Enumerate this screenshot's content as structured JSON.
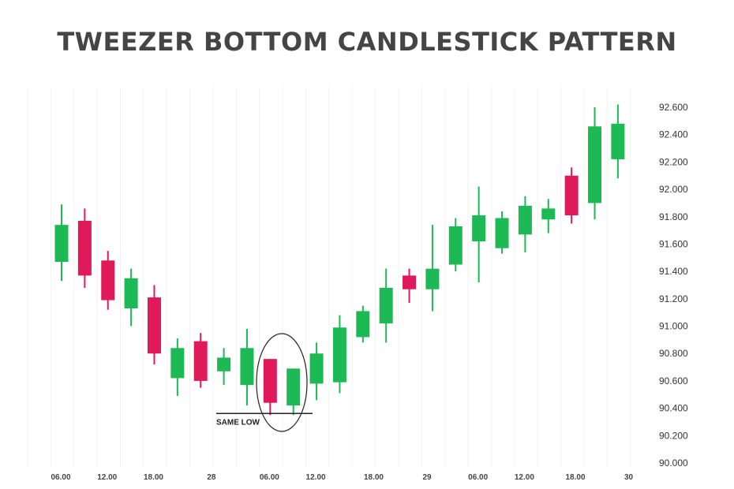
{
  "chart_data": {
    "type": "candlestick",
    "title": "TWEEZER BOTTOM CANDLESTICK PATTERN",
    "y_axis_position": "right",
    "ylim": [
      90.0,
      92.6
    ],
    "y_ticks": [
      "92.600",
      "92.400",
      "92.200",
      "92.000",
      "91.800",
      "91.600",
      "91.400",
      "91.200",
      "91.000",
      "90.800",
      "90.600",
      "90.400",
      "90.200",
      "90.000"
    ],
    "x_ticks": [
      {
        "label": "06.00",
        "at": 0
      },
      {
        "label": "12.00",
        "at": 2
      },
      {
        "label": "18.00",
        "at": 4
      },
      {
        "label": "28",
        "at": 6.5
      },
      {
        "label": "06.00",
        "at": 9
      },
      {
        "label": "12.00",
        "at": 11
      },
      {
        "label": "18.00",
        "at": 13.5
      },
      {
        "label": "29",
        "at": 15.8
      },
      {
        "label": "06.00",
        "at": 18
      },
      {
        "label": "12.00",
        "at": 20
      },
      {
        "label": "18.00",
        "at": 22.2
      },
      {
        "label": "30",
        "at": 24.5
      }
    ],
    "bull_color": "#1db954",
    "bear_color": "#e0195a",
    "candles": [
      {
        "open": 91.47,
        "high": 91.89,
        "low": 91.33,
        "close": 91.74
      },
      {
        "open": 91.77,
        "high": 91.86,
        "low": 91.28,
        "close": 91.37
      },
      {
        "open": 91.48,
        "high": 91.55,
        "low": 91.12,
        "close": 91.19
      },
      {
        "open": 91.13,
        "high": 91.42,
        "low": 91.0,
        "close": 91.35
      },
      {
        "open": 91.21,
        "high": 91.3,
        "low": 90.72,
        "close": 90.8
      },
      {
        "open": 90.62,
        "high": 90.91,
        "low": 90.49,
        "close": 90.84
      },
      {
        "open": 90.89,
        "high": 90.95,
        "low": 90.55,
        "close": 90.6
      },
      {
        "open": 90.67,
        "high": 90.84,
        "low": 90.57,
        "close": 90.77
      },
      {
        "open": 90.57,
        "high": 90.98,
        "low": 90.42,
        "close": 90.84
      },
      {
        "open": 90.76,
        "high": 90.76,
        "low": 90.35,
        "close": 90.44
      },
      {
        "open": 90.42,
        "high": 90.69,
        "low": 90.35,
        "close": 90.69
      },
      {
        "open": 90.58,
        "high": 90.88,
        "low": 90.46,
        "close": 90.8
      },
      {
        "open": 90.59,
        "high": 91.08,
        "low": 90.51,
        "close": 90.99
      },
      {
        "open": 90.92,
        "high": 91.15,
        "low": 90.88,
        "close": 91.11
      },
      {
        "open": 91.02,
        "high": 91.42,
        "low": 90.88,
        "close": 91.28
      },
      {
        "open": 91.37,
        "high": 91.42,
        "low": 91.17,
        "close": 91.27
      },
      {
        "open": 91.27,
        "high": 91.74,
        "low": 91.11,
        "close": 91.42
      },
      {
        "open": 91.45,
        "high": 91.79,
        "low": 91.4,
        "close": 91.73
      },
      {
        "open": 91.62,
        "high": 92.02,
        "low": 91.32,
        "close": 91.81
      },
      {
        "open": 91.57,
        "high": 91.84,
        "low": 91.53,
        "close": 91.79
      },
      {
        "open": 91.67,
        "high": 91.95,
        "low": 91.54,
        "close": 91.88
      },
      {
        "open": 91.78,
        "high": 91.93,
        "low": 91.68,
        "close": 91.86
      },
      {
        "open": 92.1,
        "high": 92.16,
        "low": 91.75,
        "close": 91.81
      },
      {
        "open": 91.9,
        "high": 92.6,
        "low": 91.78,
        "close": 92.46
      },
      {
        "open": 92.22,
        "high": 92.62,
        "low": 92.08,
        "close": 92.48
      }
    ],
    "annotation": {
      "text": "SAME LOW",
      "value": 90.35,
      "from_candle": 9,
      "to_candle": 10
    }
  }
}
